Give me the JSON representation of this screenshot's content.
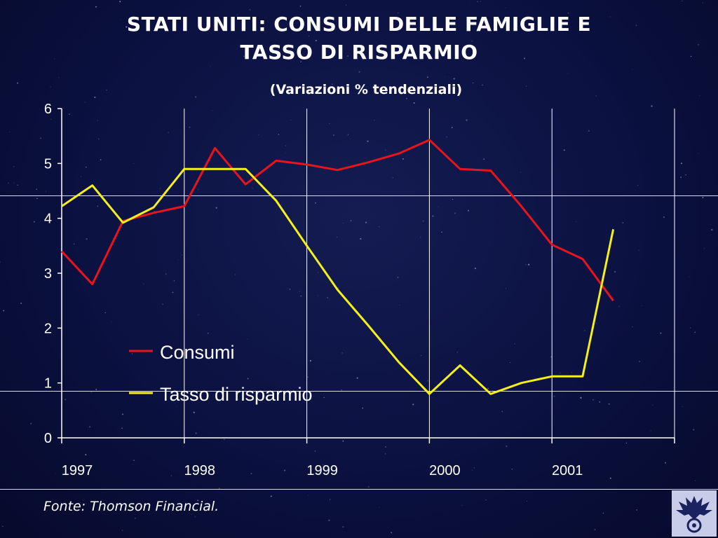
{
  "title_line1": "STATI UNITI: CONSUMI DELLE FAMIGLIE E",
  "title_line2": "TASSO DI RISPARMIO",
  "subtitle": "(Variazioni % tendenziali)",
  "footer": "Fonte: Thomson Financial.",
  "logo": "confindustria-eagle-logo",
  "colors": {
    "background": "#0b1140",
    "consumi": "#e8141c",
    "risparmio": "#f5f019",
    "axis": "#ffffff"
  },
  "chart_data": {
    "type": "line",
    "title": "STATI UNITI: CONSUMI DELLE FAMIGLIE E TASSO DI RISPARMIO",
    "subtitle": "(Variazioni % tendenziali)",
    "xlabel": "",
    "ylabel": "",
    "x": [
      1997.0,
      1997.25,
      1997.5,
      1997.75,
      1998.0,
      1998.25,
      1998.5,
      1998.75,
      1999.0,
      1999.25,
      1999.5,
      1999.75,
      2000.0,
      2000.25,
      2000.5,
      2000.75,
      2001.0,
      2001.25,
      2001.5
    ],
    "xticks": [
      "1997",
      "1998",
      "1999",
      "2000",
      "2001"
    ],
    "xlim": [
      1997.0,
      2002.0
    ],
    "ylim": [
      0,
      6
    ],
    "yticks": [
      "0",
      "1",
      "2",
      "3",
      "4",
      "5",
      "6"
    ],
    "grid": "vertical at year boundaries",
    "legend_position": "lower-left",
    "series": [
      {
        "name": "Consumi",
        "values": [
          3.4,
          2.8,
          3.95,
          4.1,
          4.22,
          5.28,
          4.62,
          5.05,
          4.98,
          4.88,
          5.02,
          5.18,
          5.43,
          4.9,
          4.87,
          4.22,
          3.52,
          3.26,
          2.5
        ]
      },
      {
        "name": "Tasso di risparmio",
        "values": [
          4.22,
          4.6,
          3.92,
          4.2,
          4.9,
          4.9,
          4.9,
          4.32,
          3.5,
          2.7,
          2.05,
          1.38,
          0.8,
          1.32,
          0.8,
          1.0,
          1.12,
          1.12,
          3.8
        ]
      }
    ]
  }
}
